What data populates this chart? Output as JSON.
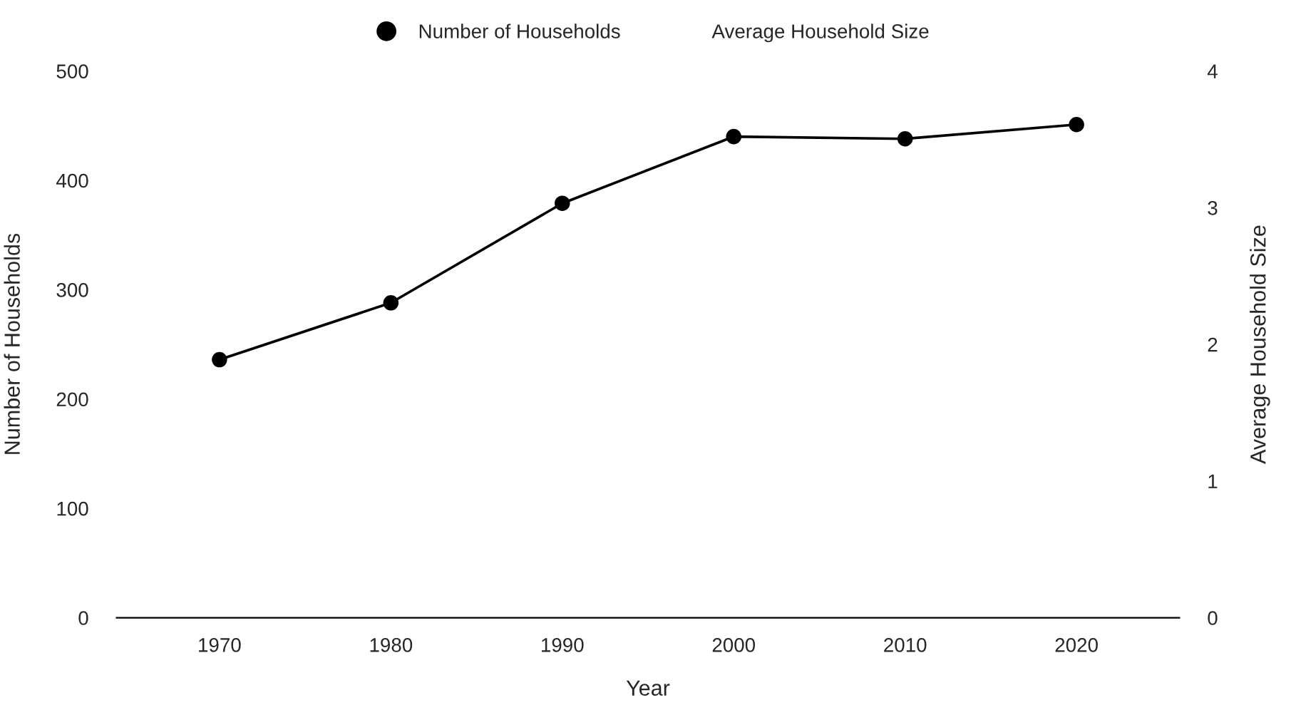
{
  "chart_data": {
    "type": "line",
    "xlabel": "Year",
    "ylabel": "Number of Households",
    "y2label": "Average Household Size",
    "categories": [
      "1970",
      "1980",
      "1990",
      "2000",
      "2010",
      "2020"
    ],
    "series": [
      {
        "name": "Number of Households",
        "color": "#000000",
        "values": [
          236,
          288,
          379,
          440,
          438,
          451
        ]
      },
      {
        "name": "Average Household Size",
        "values": [
          null,
          null,
          null,
          null,
          null,
          null
        ]
      }
    ],
    "ylim": [
      0,
      500
    ],
    "yticks": [
      0,
      100,
      200,
      300,
      400,
      500
    ],
    "y2lim": [
      0,
      4
    ],
    "y2ticks": [
      0,
      1,
      2,
      3,
      4
    ],
    "marker": "circle",
    "line_style": "solid",
    "grid": false,
    "legend": "top"
  }
}
